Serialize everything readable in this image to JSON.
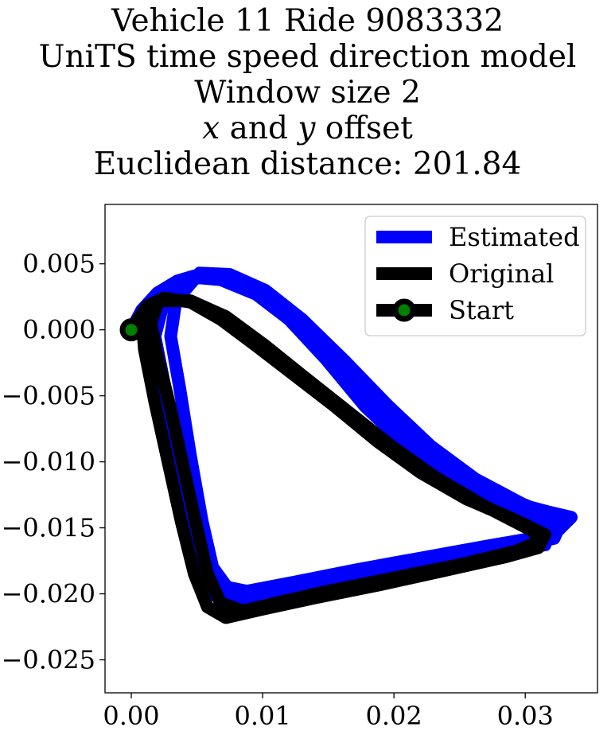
{
  "chart_data": {
    "type": "line",
    "title": {
      "line1": "Vehicle 11 Ride 9083332",
      "line2": "UniTS time speed direction model",
      "line3": "Window size 2",
      "line4_x": "x",
      "line4_and": " and ",
      "line4_y": "y",
      "line4_rest": " offset",
      "line5": "Euclidean distance: 201.84"
    },
    "xlabel": "",
    "ylabel": "",
    "xlim": [
      -0.002,
      0.0355
    ],
    "ylim": [
      -0.0275,
      0.0095
    ],
    "xticks": [
      {
        "value": 0.0,
        "label": "0.00"
      },
      {
        "value": 0.01,
        "label": "0.01"
      },
      {
        "value": 0.02,
        "label": "0.02"
      },
      {
        "value": 0.03,
        "label": "0.03"
      }
    ],
    "yticks": [
      {
        "value": 0.005,
        "label": "0.005"
      },
      {
        "value": 0.0,
        "label": "0.000"
      },
      {
        "value": -0.005,
        "label": "−0.005"
      },
      {
        "value": -0.01,
        "label": "−0.010"
      },
      {
        "value": -0.015,
        "label": "−0.015"
      },
      {
        "value": -0.02,
        "label": "−0.020"
      },
      {
        "value": -0.025,
        "label": "−0.025"
      }
    ],
    "grid": false,
    "legend_position": "top-right",
    "legend": [
      {
        "label": "Estimated",
        "color": "#0000ff"
      },
      {
        "label": "Original",
        "color": "#000000"
      },
      {
        "label": "Start",
        "color": "#000000",
        "marker_color": "#008000"
      }
    ],
    "series": [
      {
        "name": "Estimated",
        "color": "#0000ff",
        "points": [
          [
            0.0,
            0.0
          ],
          [
            0.0008,
            0.0015
          ],
          [
            0.002,
            0.0028
          ],
          [
            0.0035,
            0.0037
          ],
          [
            0.0052,
            0.0042
          ],
          [
            0.0072,
            0.0039
          ],
          [
            0.0095,
            0.0027
          ],
          [
            0.012,
            0.0008
          ],
          [
            0.0148,
            -0.0022
          ],
          [
            0.0178,
            -0.0058
          ],
          [
            0.021,
            -0.0088
          ],
          [
            0.0245,
            -0.0113
          ],
          [
            0.028,
            -0.0128
          ],
          [
            0.0318,
            -0.0138
          ],
          [
            0.0335,
            -0.0142
          ],
          [
            0.0325,
            -0.0152
          ],
          [
            0.0305,
            -0.0158
          ],
          [
            0.027,
            -0.0164
          ],
          [
            0.022,
            -0.0173
          ],
          [
            0.017,
            -0.0182
          ],
          [
            0.0125,
            -0.0191
          ],
          [
            0.0088,
            -0.0198
          ],
          [
            0.0073,
            -0.0195
          ],
          [
            0.0062,
            -0.018
          ],
          [
            0.0054,
            -0.0145
          ],
          [
            0.0045,
            -0.0095
          ],
          [
            0.0037,
            -0.0045
          ],
          [
            0.003,
            -0.0005
          ],
          [
            0.0034,
            0.0022
          ],
          [
            0.0052,
            0.0043
          ],
          [
            0.0075,
            0.0042
          ],
          [
            0.0102,
            0.003
          ],
          [
            0.013,
            0.0008
          ],
          [
            0.0162,
            -0.0023
          ],
          [
            0.0195,
            -0.0057
          ],
          [
            0.0228,
            -0.0088
          ],
          [
            0.0262,
            -0.0113
          ],
          [
            0.0298,
            -0.0132
          ],
          [
            0.0328,
            -0.0144
          ],
          [
            0.0322,
            -0.0158
          ],
          [
            0.0298,
            -0.0163
          ],
          [
            0.0255,
            -0.0168
          ],
          [
            0.0205,
            -0.0177
          ],
          [
            0.0155,
            -0.0187
          ],
          [
            0.011,
            -0.0196
          ],
          [
            0.0078,
            -0.0204
          ],
          [
            0.006,
            -0.0198
          ],
          [
            0.0048,
            -0.018
          ],
          [
            0.0041,
            -0.0145
          ],
          [
            0.0033,
            -0.0095
          ],
          [
            0.0026,
            -0.0045
          ],
          [
            0.0018,
            -0.0005
          ],
          [
            0.0025,
            0.0022
          ],
          [
            0.0045,
            0.004
          ],
          [
            0.0068,
            0.0038
          ],
          [
            0.0095,
            0.0027
          ],
          [
            0.0125,
            0.0006
          ],
          [
            0.0155,
            -0.0025
          ],
          [
            0.0188,
            -0.006
          ],
          [
            0.022,
            -0.009
          ],
          [
            0.0255,
            -0.0116
          ],
          [
            0.029,
            -0.0135
          ],
          [
            0.032,
            -0.015
          ],
          [
            0.0315,
            -0.0163
          ],
          [
            0.029,
            -0.0166
          ],
          [
            0.0245,
            -0.0171
          ],
          [
            0.0195,
            -0.018
          ],
          [
            0.0145,
            -0.019
          ],
          [
            0.0102,
            -0.0199
          ],
          [
            0.0072,
            -0.0207
          ],
          [
            0.0055,
            -0.0195
          ],
          [
            0.0045,
            -0.016
          ],
          [
            0.0036,
            -0.011
          ],
          [
            0.0026,
            -0.006
          ],
          [
            0.0017,
            -0.002
          ],
          [
            0.0013,
            0.0005
          ]
        ]
      },
      {
        "name": "Original",
        "color": "#000000",
        "points": [
          [
            0.0,
            0.0
          ],
          [
            0.0012,
            0.0018
          ],
          [
            0.0025,
            0.0024
          ],
          [
            0.0045,
            0.0021
          ],
          [
            0.0068,
            0.0008
          ],
          [
            0.0095,
            -0.0012
          ],
          [
            0.0125,
            -0.0035
          ],
          [
            0.0155,
            -0.0058
          ],
          [
            0.0188,
            -0.0085
          ],
          [
            0.022,
            -0.0108
          ],
          [
            0.0255,
            -0.0128
          ],
          [
            0.029,
            -0.0143
          ],
          [
            0.0315,
            -0.0155
          ],
          [
            0.031,
            -0.0165
          ],
          [
            0.0285,
            -0.0172
          ],
          [
            0.024,
            -0.0182
          ],
          [
            0.019,
            -0.0193
          ],
          [
            0.014,
            -0.0203
          ],
          [
            0.0098,
            -0.0212
          ],
          [
            0.0072,
            -0.0218
          ],
          [
            0.0058,
            -0.021
          ],
          [
            0.0048,
            -0.0185
          ],
          [
            0.0038,
            -0.0145
          ],
          [
            0.0028,
            -0.01
          ],
          [
            0.0018,
            -0.0055
          ],
          [
            0.001,
            -0.0015
          ],
          [
            0.0008,
            0.001
          ],
          [
            0.0022,
            0.0022
          ],
          [
            0.0045,
            0.0022
          ],
          [
            0.0072,
            0.001
          ],
          [
            0.0102,
            -0.0012
          ],
          [
            0.0132,
            -0.0036
          ],
          [
            0.0165,
            -0.0062
          ],
          [
            0.0198,
            -0.0088
          ],
          [
            0.0232,
            -0.0112
          ],
          [
            0.0268,
            -0.0133
          ],
          [
            0.0305,
            -0.0152
          ],
          [
            0.0312,
            -0.016
          ],
          [
            0.0292,
            -0.0168
          ],
          [
            0.025,
            -0.0178
          ],
          [
            0.02,
            -0.0188
          ],
          [
            0.015,
            -0.0198
          ],
          [
            0.011,
            -0.0207
          ],
          [
            0.0085,
            -0.0213
          ],
          [
            0.0068,
            -0.0207
          ],
          [
            0.0058,
            -0.0185
          ],
          [
            0.005,
            -0.015
          ],
          [
            0.004,
            -0.0105
          ],
          [
            0.003,
            -0.006
          ],
          [
            0.002,
            -0.002
          ],
          [
            0.0015,
            0.0005
          ],
          [
            0.002,
            0.002
          ]
        ]
      }
    ],
    "start_point": [
      0.0,
      0.0
    ]
  }
}
